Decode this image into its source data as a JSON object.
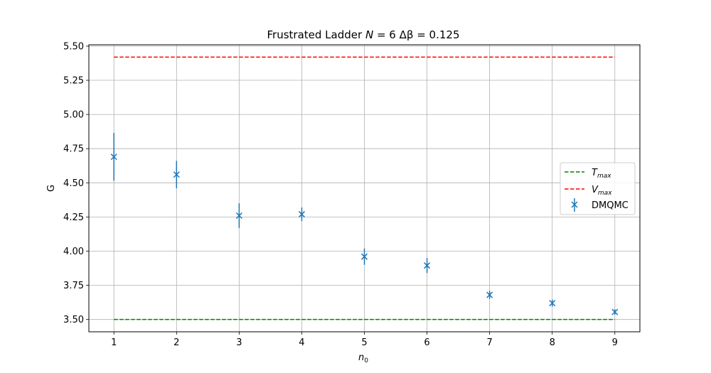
{
  "chart_data": {
    "type": "scatter",
    "title": "Frustrated Ladder N = 6 Δβ = 0.125",
    "title_parts": {
      "prefix": "Frustrated Ladder ",
      "n_label": "N",
      "n_eq": " = 6 ",
      "beta_label": "Δβ",
      "beta_eq": " = 0.125"
    },
    "xlabel": "n",
    "xlabel_sub": "0",
    "ylabel": "G",
    "xlim": [
      0.6,
      9.4
    ],
    "ylim": [
      3.41,
      5.51
    ],
    "xticks": [
      "1",
      "2",
      "3",
      "4",
      "5",
      "6",
      "7",
      "8",
      "9"
    ],
    "xtick_values": [
      1,
      2,
      3,
      4,
      5,
      6,
      7,
      8,
      9
    ],
    "yticks": [
      "3.50",
      "3.75",
      "4.00",
      "4.25",
      "4.50",
      "4.75",
      "5.00",
      "5.25",
      "5.50"
    ],
    "ytick_values": [
      3.5,
      3.75,
      4.0,
      4.25,
      4.5,
      4.75,
      5.0,
      5.25,
      5.5
    ],
    "grid": true,
    "legend_position": "center-right",
    "series": [
      {
        "name": "DMQMC",
        "kind": "errorbar",
        "marker": "x",
        "color": "#1f77b4",
        "x": [
          1,
          2,
          3,
          4,
          5,
          6,
          7,
          8,
          9
        ],
        "y": [
          4.69,
          4.56,
          4.26,
          4.27,
          3.96,
          3.895,
          3.68,
          3.62,
          3.555
        ],
        "yerr": [
          0.175,
          0.1,
          0.09,
          0.05,
          0.06,
          0.055,
          0.03,
          0.025,
          0.02
        ]
      },
      {
        "name": "T",
        "name_sub": "max",
        "kind": "hline",
        "style": "dashed",
        "color": "#008000",
        "y": 3.5,
        "x_range": [
          1,
          9
        ]
      },
      {
        "name": "V",
        "name_sub": "max",
        "kind": "hline",
        "style": "dashed",
        "color": "#ff0000",
        "y": 5.42,
        "x_range": [
          1,
          9
        ]
      }
    ]
  }
}
